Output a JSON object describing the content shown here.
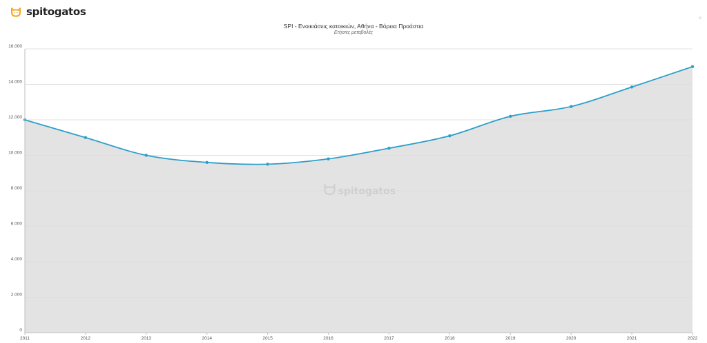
{
  "brand": {
    "name": "spitogatos",
    "logo_icon": "cat-face-icon",
    "accent_color": "#f5a623"
  },
  "chart_data": {
    "type": "area",
    "title": "SPI - Ενοικιάσεις κατοικιών, Αθήνα - Βόρεια Προάστια",
    "subtitle": "Ετήσιες μεταβολές",
    "x": [
      "2011",
      "2012",
      "2013",
      "2014",
      "2015",
      "2016",
      "2017",
      "2018",
      "2019",
      "2020",
      "2021",
      "2022"
    ],
    "series": [
      {
        "values": [
          12000,
          11000,
          10000,
          9600,
          9500,
          9800,
          10400,
          11100,
          12200,
          12750,
          13850,
          15000
        ],
        "color": "#2b9fc9",
        "fill": "#e3e3e3"
      }
    ],
    "ylim": [
      0,
      16000
    ],
    "y_ticks": [
      "0",
      "2.000",
      "4.000",
      "6.000",
      "8.000",
      "10.000",
      "12.000",
      "14.000",
      "16.000"
    ],
    "y_tick_values": [
      0,
      2000,
      4000,
      6000,
      8000,
      10000,
      12000,
      14000,
      16000
    ],
    "grid": true,
    "legend": "none",
    "watermark": "spitogatos"
  }
}
